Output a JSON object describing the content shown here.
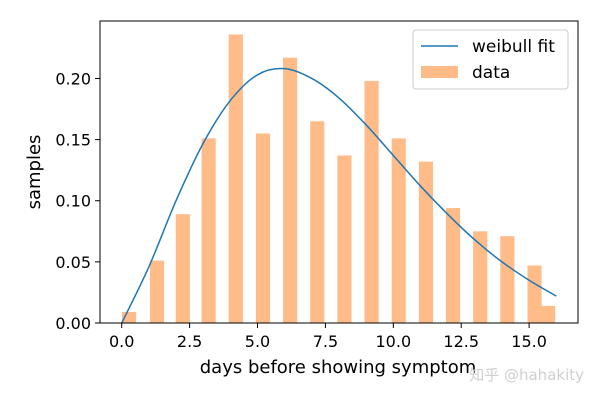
{
  "chart_data": {
    "type": "bar",
    "xlabel": "days before showing symptom",
    "ylabel": "samples",
    "xlim": [
      -0.8,
      16.8
    ],
    "ylim": [
      0,
      0.247
    ],
    "x_ticks": [
      0.0,
      2.5,
      5.0,
      7.5,
      10.0,
      12.5,
      15.0
    ],
    "x_tick_labels": [
      "0.0",
      "2.5",
      "5.0",
      "7.5",
      "10.0",
      "12.5",
      "15.0"
    ],
    "y_ticks": [
      0.0,
      0.05,
      0.1,
      0.15,
      0.2
    ],
    "y_tick_labels": [
      "0.00",
      "0.05",
      "0.10",
      "0.15",
      "0.20"
    ],
    "grid": false,
    "legend_position": "top-right",
    "series": [
      {
        "name": "data",
        "kind": "bar",
        "color": "#ffbb88",
        "bar_width": 0.52,
        "x": [
          0.27,
          1.3,
          2.25,
          3.2,
          4.2,
          5.2,
          6.2,
          7.2,
          8.2,
          9.2,
          10.2,
          11.2,
          12.2,
          13.2,
          14.2,
          15.2,
          15.7
        ],
        "values": [
          0.009,
          0.051,
          0.089,
          0.151,
          0.236,
          0.155,
          0.217,
          0.165,
          0.137,
          0.198,
          0.151,
          0.132,
          0.094,
          0.075,
          0.071,
          0.047,
          0.014
        ]
      },
      {
        "name": "weibull fit",
        "kind": "line",
        "color": "#1f77b4",
        "x": [
          0.0,
          1.0,
          2.0,
          3.0,
          4.0,
          5.0,
          6.0,
          7.0,
          8.0,
          9.0,
          10.0,
          11.0,
          12.0,
          13.0,
          14.0,
          15.0,
          16.0
        ],
        "values": [
          0.0,
          0.046,
          0.1,
          0.147,
          0.182,
          0.203,
          0.208,
          0.2,
          0.184,
          0.162,
          0.137,
          0.112,
          0.089,
          0.068,
          0.05,
          0.035,
          0.022
        ]
      }
    ]
  },
  "watermark": "知乎 @hahakity"
}
